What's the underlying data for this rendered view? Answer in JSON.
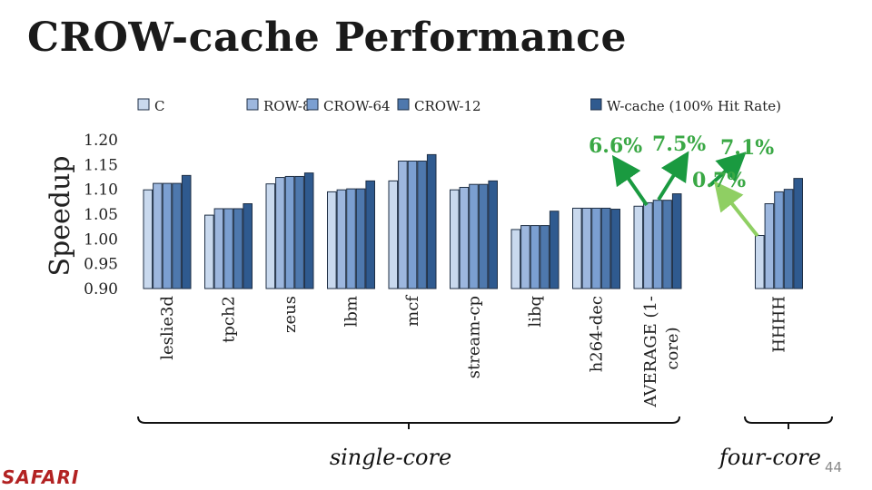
{
  "slide": {
    "title": "CROW-cache Performance",
    "page_number": "44",
    "logo_text": "SAFARI"
  },
  "colors": {
    "series": [
      "#c9d9ee",
      "#9db7de",
      "#7b9fd1",
      "#4e78ad",
      "#2f5a8f"
    ],
    "annotation_dark": "#1a9a40",
    "annotation_light": "#8fcf63",
    "annotation_text": "#3aa845"
  },
  "chart_data": {
    "type": "bar",
    "ylabel": "Speedup",
    "ylim": [
      0.9,
      1.2
    ],
    "yticks": [
      "0.90",
      "0.95",
      "1.00",
      "1.05",
      "1.10",
      "1.15",
      "1.20"
    ],
    "legend_placement": "top",
    "legend_visible": [
      "C",
      "ROW-8",
      "CROW-64",
      "CROW-12",
      "W-cache (100% Hit Rate)"
    ],
    "categories": [
      "leslie3d",
      "tpch2",
      "zeus",
      "lbm",
      "mcf",
      "stream-cp",
      "libq",
      "h264-dec",
      "AVERAGE (1-core)",
      "HHHH"
    ],
    "series": [
      {
        "name": "C",
        "values": [
          1.099,
          1.048,
          1.111,
          1.095,
          1.117,
          1.099,
          1.019,
          1.062,
          1.066,
          1.007
        ]
      },
      {
        "name": "ROW-8",
        "values": [
          1.112,
          1.061,
          1.124,
          1.099,
          1.157,
          1.104,
          1.027,
          1.062,
          1.073,
          1.071
        ]
      },
      {
        "name": "CROW-64",
        "values": [
          1.112,
          1.061,
          1.126,
          1.101,
          1.157,
          1.11,
          1.027,
          1.062,
          1.078,
          1.095
        ]
      },
      {
        "name": "CROW-12",
        "values": [
          1.112,
          1.061,
          1.126,
          1.101,
          1.157,
          1.11,
          1.027,
          1.062,
          1.078,
          1.1
        ]
      },
      {
        "name": "W-cache (100% Hit Rate)",
        "values": [
          1.128,
          1.071,
          1.133,
          1.117,
          1.17,
          1.117,
          1.056,
          1.06,
          1.091,
          1.122
        ]
      }
    ],
    "annotations": [
      "6.6%",
      "7.5%",
      "7.1%",
      "0.7%"
    ],
    "groups": [
      {
        "label": "single-core"
      },
      {
        "label": "four-core"
      }
    ]
  }
}
